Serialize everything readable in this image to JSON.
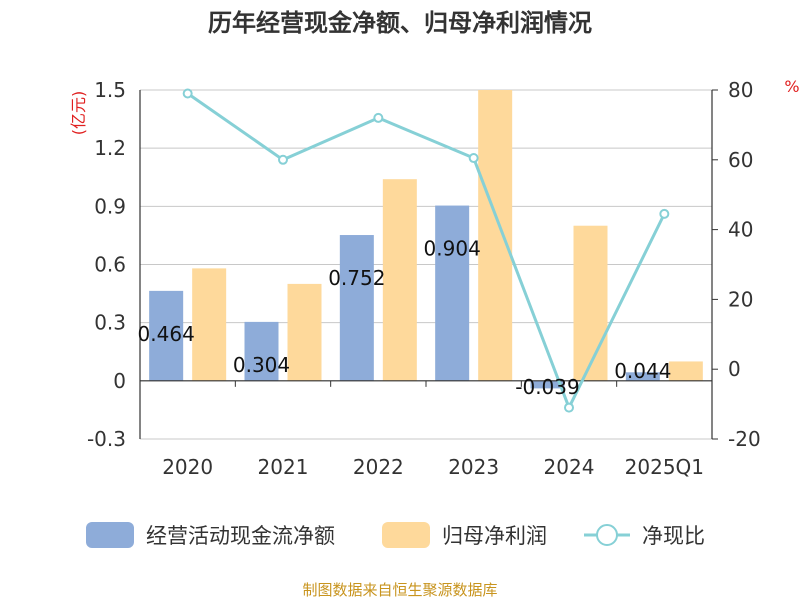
{
  "chart_data": {
    "type": "bar",
    "title": "历年经营现金净额、归母净利润情况",
    "categories": [
      "2020",
      "2021",
      "2022",
      "2023",
      "2024",
      "2025Q1"
    ],
    "series": [
      {
        "name": "经营活动现金流净额",
        "kind": "bar",
        "axis": "left",
        "color": "#8eacd9",
        "values": [
          0.464,
          0.304,
          0.752,
          0.904,
          -0.039,
          0.044
        ],
        "labels": [
          "0.464",
          "0.304",
          "0.752",
          "0.904",
          "-0.039",
          "0.044"
        ]
      },
      {
        "name": "归母净利润",
        "kind": "bar",
        "axis": "left",
        "color": "#fed99b",
        "values": [
          0.58,
          0.5,
          1.04,
          1.5,
          0.8,
          0.1
        ]
      },
      {
        "name": "净现比",
        "kind": "line",
        "axis": "right",
        "color": "#86d0d6",
        "values": [
          79.0,
          60.0,
          72.0,
          60.5,
          -11.0,
          44.5
        ]
      }
    ],
    "y_left": {
      "unit": "(亿元)",
      "ylim": [
        -0.3,
        1.5
      ],
      "ticks": [
        "-0.3",
        "0",
        "0.3",
        "0.6",
        "0.9",
        "1.2",
        "1.5"
      ]
    },
    "y_right": {
      "unit": "%",
      "ylim": [
        -20,
        80
      ],
      "ticks": [
        "-20",
        "0",
        "20",
        "40",
        "60",
        "80"
      ]
    },
    "grid": true,
    "legend_position": "bottom"
  },
  "source": "制图数据来自恒生聚源数据库"
}
